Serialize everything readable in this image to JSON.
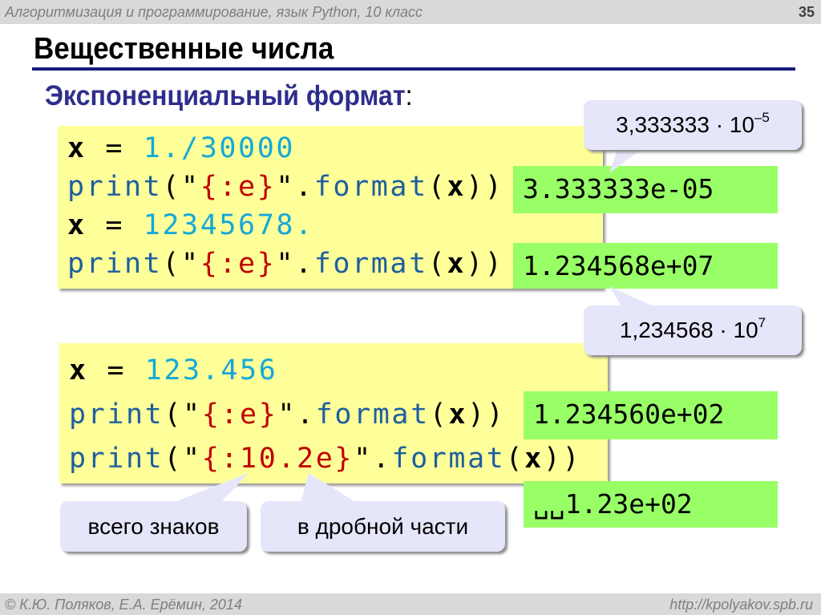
{
  "header": {
    "course": "Алгоритмизация и программирование, язык Python, 10 класс",
    "page_number": "35"
  },
  "title": "Вещественные числа",
  "subtitle": {
    "text": "Экспоненциальный формат",
    "colon": ":"
  },
  "code_block_1": [
    [
      [
        "var",
        "x"
      ],
      [
        "op",
        " = "
      ],
      [
        "num",
        "1./30000"
      ]
    ],
    [
      [
        "fn",
        "print"
      ],
      [
        "punct",
        "(\""
      ],
      [
        "str",
        "{:e}"
      ],
      [
        "punct",
        "\"."
      ],
      [
        "fn",
        "format"
      ],
      [
        "punct",
        "("
      ],
      [
        "var",
        "x"
      ],
      [
        "punct",
        "))"
      ]
    ],
    [
      [
        "var",
        "x"
      ],
      [
        "op",
        " = "
      ],
      [
        "num",
        "12345678."
      ]
    ],
    [
      [
        "fn",
        "print"
      ],
      [
        "punct",
        "(\""
      ],
      [
        "str",
        "{:e}"
      ],
      [
        "punct",
        "\"."
      ],
      [
        "fn",
        "format"
      ],
      [
        "punct",
        "("
      ],
      [
        "var",
        "x"
      ],
      [
        "punct",
        "))"
      ]
    ]
  ],
  "code_block_2": [
    [
      [
        "var",
        "x"
      ],
      [
        "op",
        " = "
      ],
      [
        "num",
        "123.456"
      ]
    ],
    [
      [
        "fn",
        "print"
      ],
      [
        "punct",
        "(\""
      ],
      [
        "str",
        "{:e}"
      ],
      [
        "punct",
        "\"."
      ],
      [
        "fn",
        "format"
      ],
      [
        "punct",
        "("
      ],
      [
        "var",
        "x"
      ],
      [
        "punct",
        "))"
      ]
    ],
    [
      [
        "fn",
        "print"
      ],
      [
        "punct",
        "(\""
      ],
      [
        "str",
        "{:10.2e}"
      ],
      [
        "punct",
        "\"."
      ],
      [
        "fn",
        "format"
      ],
      [
        "punct",
        "("
      ],
      [
        "var",
        "x"
      ],
      [
        "punct",
        "))"
      ]
    ]
  ],
  "outputs": [
    "3.333333e-05",
    "1.234568e+07",
    "1.234560e+02",
    "␣␣1.23e+02"
  ],
  "callouts": {
    "sci1": {
      "mantissa": "3,333333 · 10",
      "exp": "–5"
    },
    "sci2": {
      "mantissa": "1,234568 · 10",
      "exp": "7"
    },
    "total_chars": "всего знаков",
    "fraction_part": "в дробной части"
  },
  "footer": {
    "copyright": "© К.Ю. Поляков, Е.А. Ерёмин, 2014",
    "url": "http://kpolyakov.spb.ru"
  },
  "colors": {
    "code_bg": "#ffff99",
    "output_bg": "#99ff66",
    "callout_bg": "#e6e6fa",
    "title_rule": "#1a1a80",
    "subtitle": "#2e2e8c",
    "number": "#16a8d8",
    "function": "#1f5fa0",
    "string": "#c00000"
  }
}
